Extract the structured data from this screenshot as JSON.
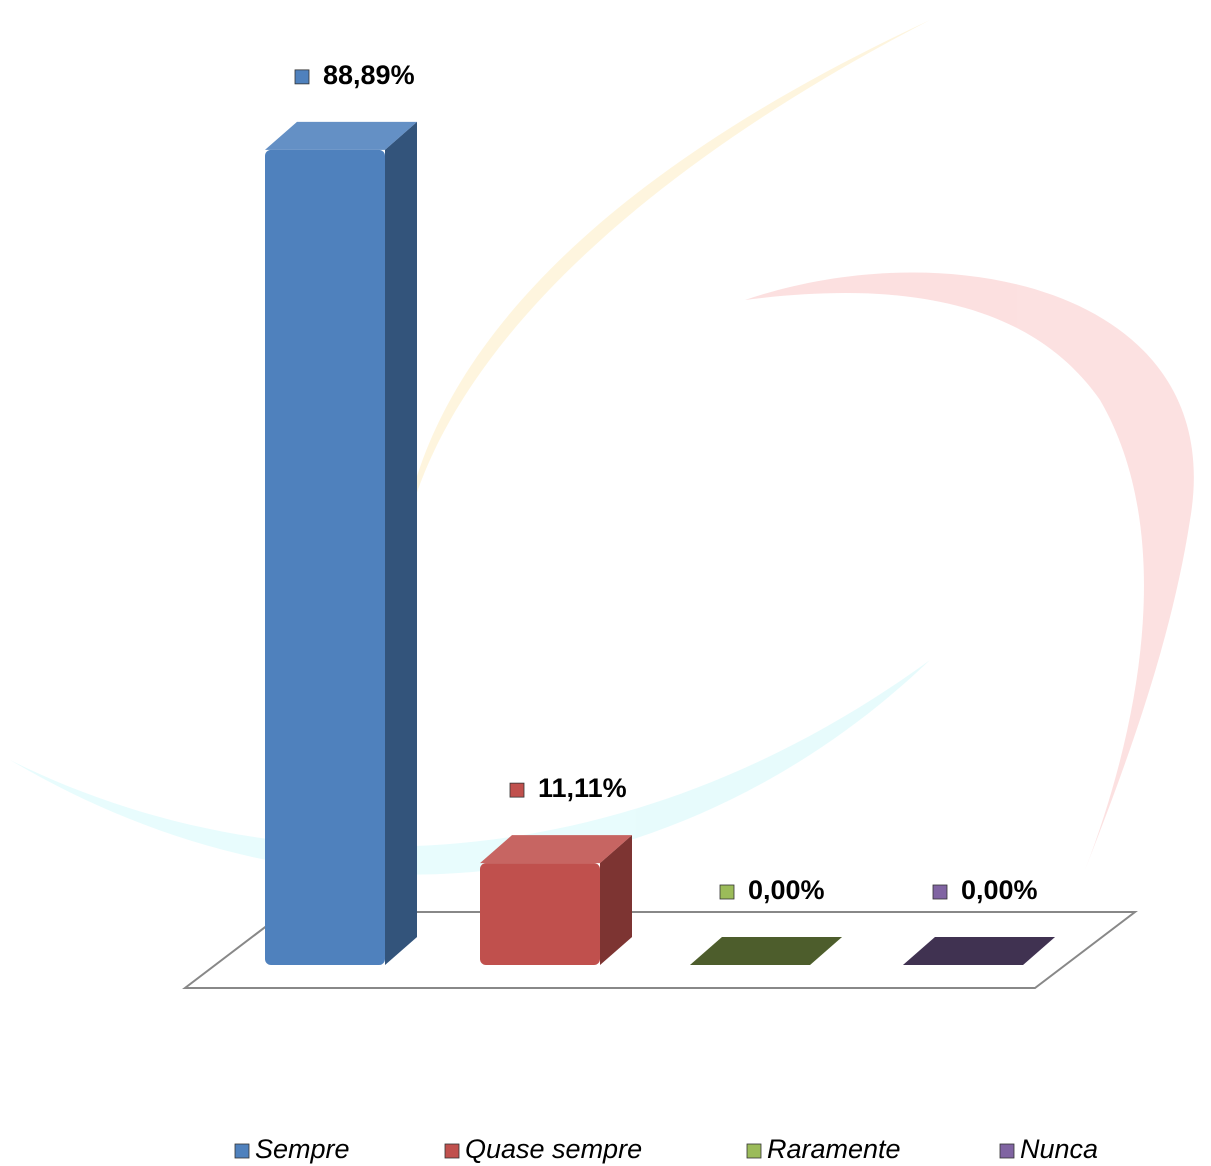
{
  "chart_data": {
    "type": "bar3d",
    "categories": [
      "Sempre",
      "Quase sempre",
      "Raramente",
      "Nunca"
    ],
    "values": [
      88.89,
      11.11,
      0,
      0
    ],
    "value_labels": [
      "88,89%",
      "11,11%",
      "0,00%",
      "0,00%"
    ],
    "colors": [
      "#4f81bd",
      "#c0504d",
      "#9bbb59",
      "#8064a2"
    ],
    "legend": "bottom"
  }
}
